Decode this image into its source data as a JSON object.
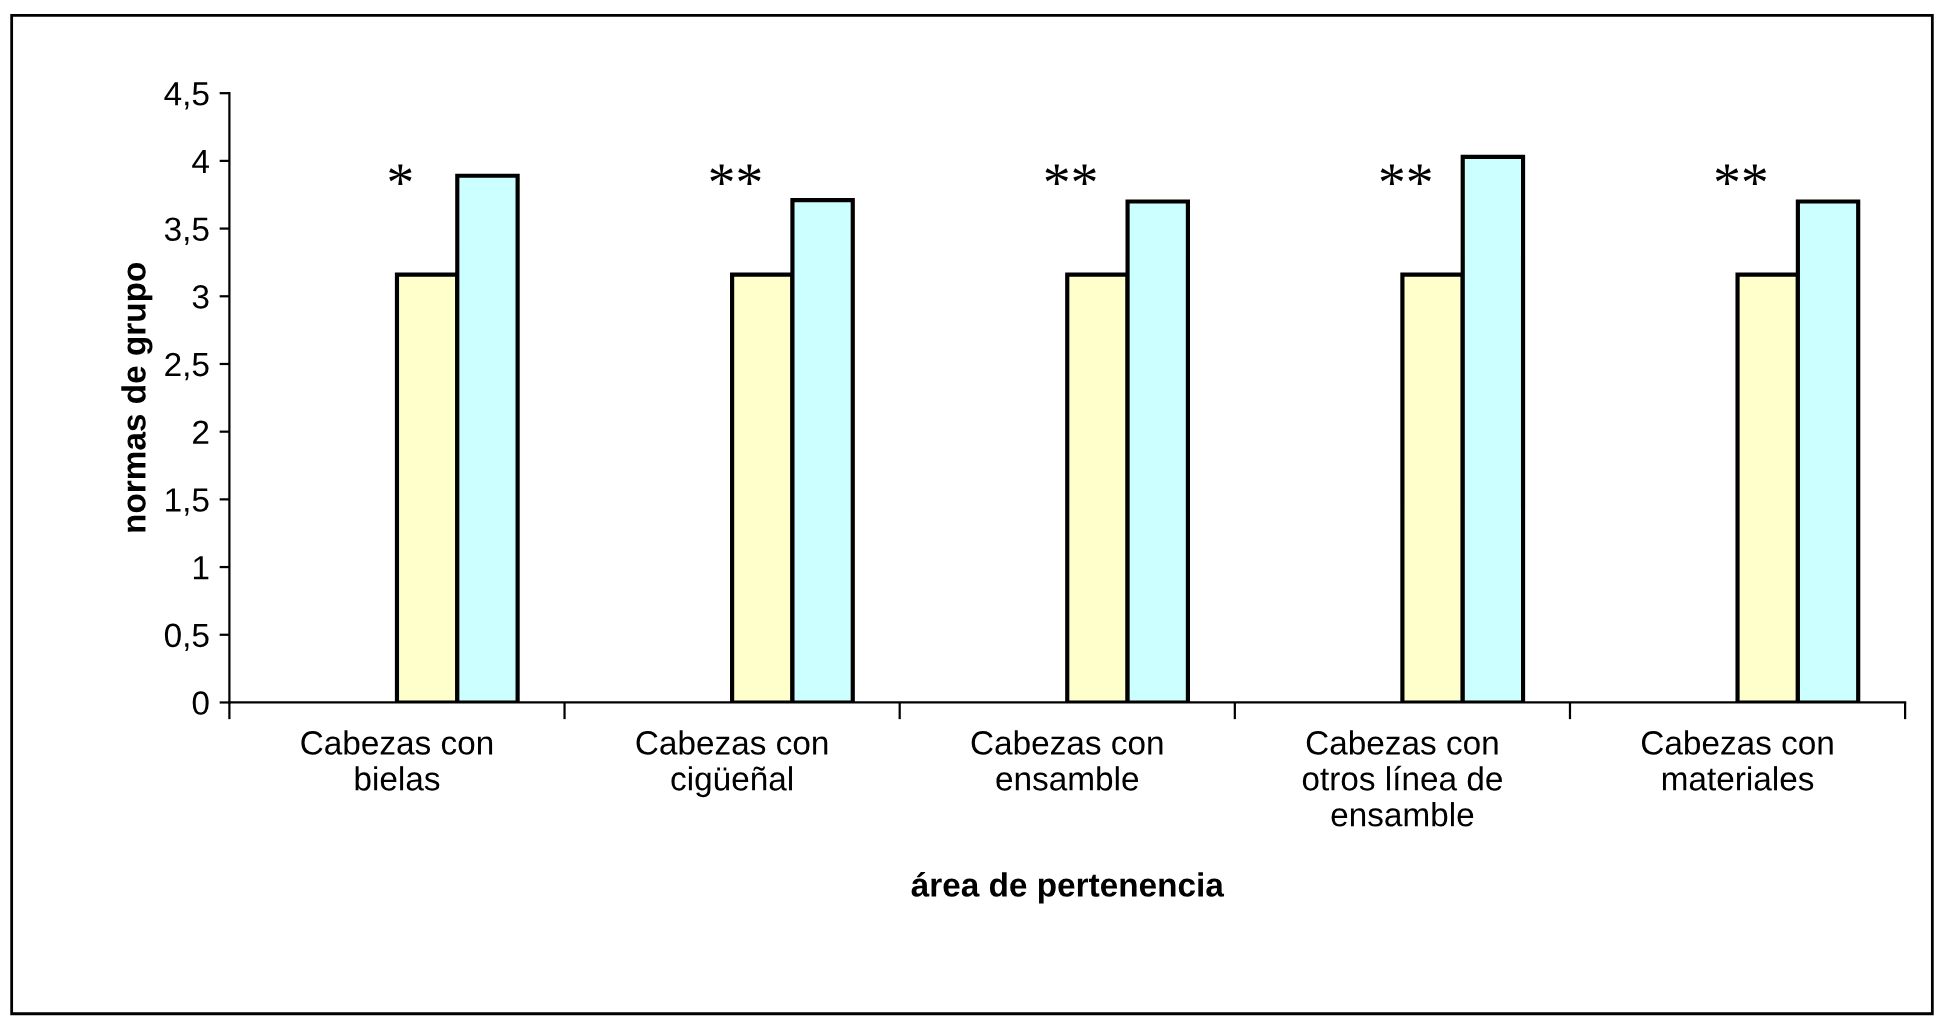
{
  "chart_data": {
    "type": "bar",
    "xlabel": "área de pertenencia",
    "ylabel": "normas de grupo",
    "categories": [
      "Cabezas con\nbielas",
      "Cabezas con\ncigüeñal",
      "Cabezas con\nensamble",
      "Cabezas con\notros línea de\nensamble",
      "Cabezas con\nmateriales"
    ],
    "series": [
      {
        "color": "#ffffcc",
        "values": [
          3.16,
          3.16,
          3.16,
          3.16,
          3.16
        ]
      },
      {
        "color": "#ccffff",
        "values": [
          3.89,
          3.71,
          3.7,
          4.03,
          3.7
        ]
      }
    ],
    "annotations": [
      "*",
      "**",
      "**",
      "**",
      "**"
    ],
    "ylim": [
      0,
      4.5
    ],
    "yticks": [
      {
        "value": 0,
        "label": "0"
      },
      {
        "value": 0.5,
        "label": "0,5"
      },
      {
        "value": 1,
        "label": "1"
      },
      {
        "value": 1.5,
        "label": "1,5"
      },
      {
        "value": 2,
        "label": "2"
      },
      {
        "value": 2.5,
        "label": "2,5"
      },
      {
        "value": 3,
        "label": "3"
      },
      {
        "value": 3.5,
        "label": "3,5"
      },
      {
        "value": 4,
        "label": "4"
      },
      {
        "value": 4.5,
        "label": "4,5"
      }
    ],
    "grid": false,
    "legend": false
  }
}
